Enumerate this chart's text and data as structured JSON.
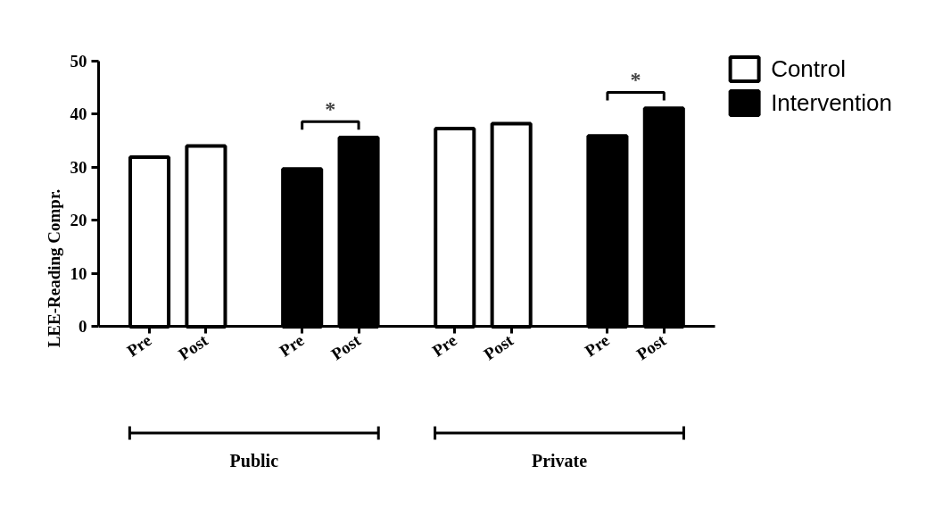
{
  "chart_data": {
    "type": "bar",
    "ylabel": "LEE-Reading Compr.",
    "categories": [
      "Pre",
      "Post",
      "Pre",
      "Post",
      "Pre",
      "Post",
      "Pre",
      "Post"
    ],
    "series": [
      {
        "name": "Control",
        "color": "#ffffff",
        "values": [
          31.9,
          34.0,
          null,
          null,
          37.3,
          38.2,
          null,
          null
        ]
      },
      {
        "name": "Intervention",
        "color": "#000000",
        "values": [
          null,
          null,
          29.7,
          35.6,
          null,
          null,
          35.9,
          41.1
        ]
      }
    ],
    "ylim": [
      0,
      50
    ],
    "yticks": [
      0,
      10,
      20,
      30,
      40,
      50
    ],
    "grid": false,
    "legend": "right",
    "annotations": [
      "*",
      "*",
      "Public",
      "Private"
    ]
  }
}
